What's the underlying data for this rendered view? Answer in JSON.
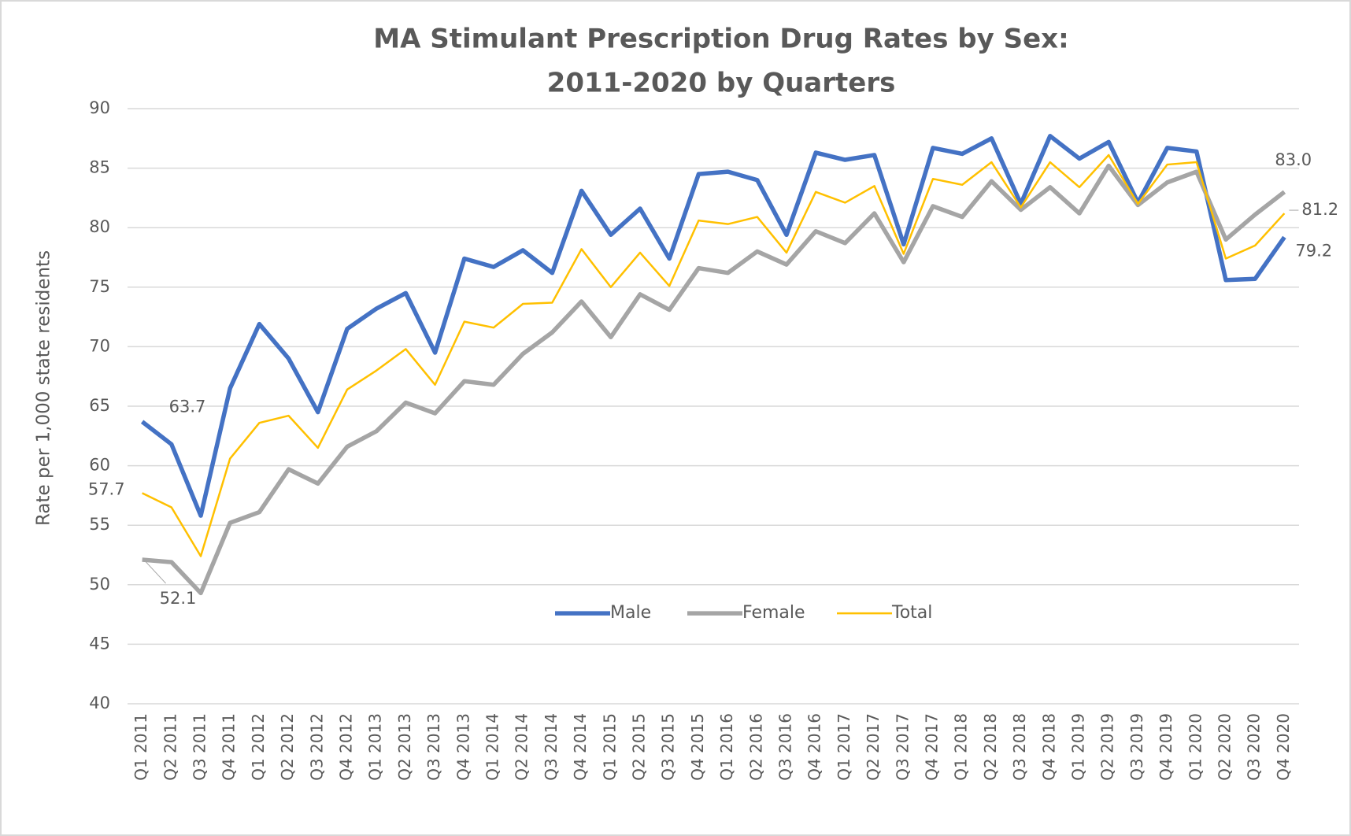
{
  "chart_data": {
    "type": "line",
    "title": [
      "MA Stimulant Prescription Drug Rates by Sex:",
      "2011-2020 by Quarters"
    ],
    "y_label": "Rate per 1,000 state residents",
    "categories": [
      "Q1 2011",
      "Q2 2011",
      "Q3 2011",
      "Q4 2011",
      "Q1 2012",
      "Q2 2012",
      "Q3 2012",
      "Q4 2012",
      "Q1 2013",
      "Q2 2013",
      "Q3 2013",
      "Q4 2013",
      "Q1 2014",
      "Q2 2014",
      "Q3 2014",
      "Q4 2014",
      "Q1 2015",
      "Q2 2015",
      "Q3 2015",
      "Q4 2015",
      "Q1 2016",
      "Q2 2016",
      "Q3 2016",
      "Q4 2016",
      "Q1 2017",
      "Q2 2017",
      "Q3 2017",
      "Q4 2017",
      "Q1 2018",
      "Q2 2018",
      "Q3 2018",
      "Q4 2018",
      "Q1 2019",
      "Q2 2019",
      "Q3 2019",
      "Q4 2019",
      "Q1 2020",
      "Q2 2020",
      "Q3 2020",
      "Q4 2020"
    ],
    "series": [
      {
        "name": "Male",
        "color": "#4472c4",
        "values": [
          63.7,
          61.8,
          55.8,
          66.5,
          71.9,
          69.0,
          64.5,
          71.5,
          73.2,
          74.5,
          69.5,
          77.4,
          76.7,
          78.1,
          76.2,
          83.1,
          79.4,
          81.6,
          77.4,
          84.5,
          84.7,
          84.0,
          79.4,
          86.3,
          85.7,
          86.1,
          78.6,
          86.7,
          86.2,
          87.5,
          82.0,
          87.7,
          85.8,
          87.2,
          82.1,
          86.7,
          86.4,
          75.6,
          75.7,
          79.2
        ],
        "value_labels": [
          "63.7",
          null,
          null,
          null,
          null,
          null,
          null,
          null,
          null,
          null,
          null,
          null,
          null,
          null,
          null,
          null,
          null,
          null,
          null,
          null,
          null,
          null,
          null,
          null,
          null,
          null,
          null,
          null,
          null,
          null,
          null,
          null,
          null,
          null,
          null,
          null,
          null,
          null,
          null,
          "79.2"
        ]
      },
      {
        "name": "Female",
        "color": "#a5a5a5",
        "values": [
          52.1,
          51.9,
          49.3,
          55.2,
          56.1,
          59.7,
          58.5,
          61.6,
          62.9,
          65.3,
          64.4,
          67.1,
          66.8,
          69.4,
          71.2,
          73.8,
          70.8,
          74.4,
          73.1,
          76.6,
          76.2,
          78.0,
          76.9,
          79.7,
          78.7,
          81.2,
          77.1,
          81.8,
          80.9,
          83.9,
          81.5,
          83.4,
          81.2,
          85.2,
          81.9,
          83.8,
          84.7,
          79.0,
          81.1,
          83.0
        ],
        "value_labels": [
          "52.1",
          null,
          null,
          null,
          null,
          null,
          null,
          null,
          null,
          null,
          null,
          null,
          null,
          null,
          null,
          null,
          null,
          null,
          null,
          null,
          null,
          null,
          null,
          null,
          null,
          null,
          null,
          null,
          null,
          null,
          null,
          null,
          null,
          null,
          null,
          null,
          null,
          null,
          null,
          "83.0"
        ]
      },
      {
        "name": "Total",
        "color": "#ffc000",
        "values": [
          57.7,
          56.5,
          52.4,
          60.6,
          63.6,
          64.2,
          61.5,
          66.4,
          68.0,
          69.8,
          66.8,
          72.1,
          71.6,
          73.6,
          73.7,
          78.2,
          75.0,
          77.9,
          75.1,
          80.6,
          80.3,
          80.9,
          77.9,
          83.0,
          82.1,
          83.5,
          77.8,
          84.1,
          83.6,
          85.5,
          81.7,
          85.5,
          83.4,
          86.1,
          82.0,
          85.3,
          85.5,
          77.4,
          78.5,
          81.2
        ],
        "value_labels": [
          "57.7",
          null,
          null,
          null,
          null,
          null,
          null,
          null,
          null,
          null,
          null,
          null,
          null,
          null,
          null,
          null,
          null,
          null,
          null,
          null,
          null,
          null,
          null,
          null,
          null,
          null,
          null,
          null,
          null,
          null,
          null,
          null,
          null,
          null,
          null,
          null,
          null,
          null,
          null,
          "81.2"
        ]
      }
    ],
    "ylim": [
      40,
      90
    ],
    "yticks": [
      40,
      45,
      50,
      55,
      60,
      65,
      70,
      75,
      80,
      85,
      90
    ],
    "grid": true,
    "legend": "lower center"
  }
}
